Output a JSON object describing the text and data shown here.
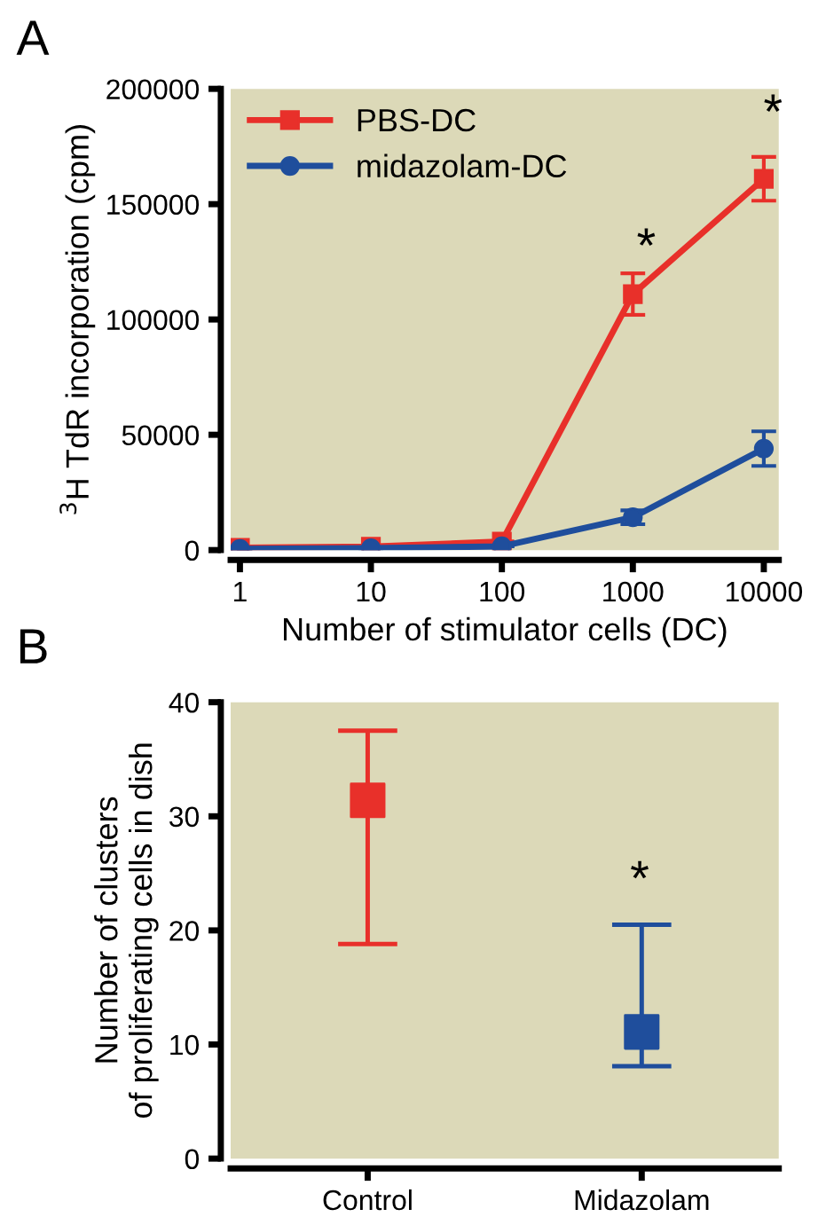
{
  "chart_data": [
    {
      "type": "line",
      "xlabel": "Number of stimulator cells (DC)",
      "ylabel": "$^{3}$H TdR incorporation (cpm)",
      "log": "x",
      "x": [
        1,
        10,
        100,
        1000,
        10000
      ],
      "series": [
        {
          "name": "PBS-DC",
          "color": "#e8302a",
          "marker": "square",
          "values": [
            1000,
            1500,
            3700,
            111000,
            161000
          ],
          "errors": [
            null,
            null,
            null,
            9000,
            9500
          ]
        },
        {
          "name": "midazolam-DC",
          "color": "#1f4e9c",
          "marker": "circle",
          "values": [
            500,
            800,
            1600,
            14200,
            44000
          ],
          "errors": [
            null,
            null,
            null,
            3000,
            7500
          ]
        }
      ],
      "xlim": [
        0.85,
        13000
      ],
      "xticks": [
        1,
        10,
        100,
        1000,
        10000
      ],
      "ylim": [
        0,
        200000
      ],
      "yticks": [
        0,
        50000,
        100000,
        150000,
        200000
      ],
      "grid": false,
      "legend": "top left",
      "line_style": "solid",
      "annotations": [
        "A",
        "*",
        "*"
      ]
    },
    {
      "type": "scatter",
      "ylabel": "Number of clusters\nof proliferating cells in dish",
      "categories": [
        "Control",
        "Midazolam"
      ],
      "series": [
        {
          "colors": [
            "#e8302a",
            "#1f4e9c"
          ],
          "values": [
            31.4,
            11.1
          ],
          "errors": [
            [
              18.8,
              37.5
            ],
            [
              8.1,
              20.5
            ]
          ]
        }
      ],
      "ylim": [
        0,
        40
      ],
      "yticks": [
        0,
        10,
        20,
        30,
        40
      ],
      "grid": false,
      "legend": false,
      "marker": "square",
      "annotations": [
        "B",
        "*"
      ]
    }
  ]
}
